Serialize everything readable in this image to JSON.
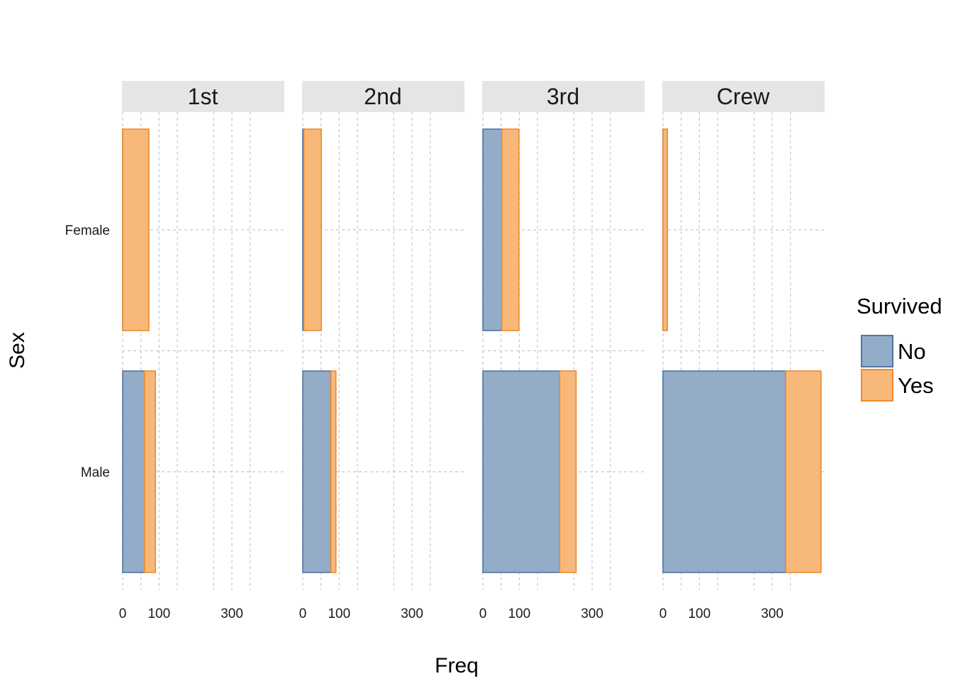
{
  "chart_data": {
    "type": "bar",
    "orientation": "horizontal",
    "stacked": true,
    "facets": [
      "1st",
      "2nd",
      "3rd",
      "Crew"
    ],
    "categories": [
      "Female",
      "Male"
    ],
    "xlabel": "Freq",
    "ylabel": "Sex",
    "xlim": [
      0,
      435
    ],
    "xticks": [
      0,
      100,
      300
    ],
    "grid": true,
    "legend": {
      "title": "Survived",
      "position": "right"
    },
    "series": [
      {
        "name": "No",
        "color": "#93acc8",
        "stroke": "#4f75a3",
        "values": {
          "1st": [
            0,
            60
          ],
          "2nd": [
            3,
            77
          ],
          "3rd": [
            52,
            211
          ],
          "Crew": [
            0,
            337
          ]
        }
      },
      {
        "name": "Yes",
        "color": "#f7b87a",
        "stroke": "#ee8a2c",
        "values": {
          "1st": [
            72,
            30
          ],
          "2nd": [
            48,
            14
          ],
          "3rd": [
            47,
            45
          ],
          "Crew": [
            12,
            97
          ]
        }
      }
    ]
  }
}
